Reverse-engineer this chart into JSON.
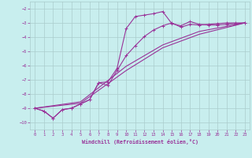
{
  "xlabel": "Windchill (Refroidissement éolien,°C)",
  "bg_color": "#c8eeee",
  "line_color": "#993399",
  "grid_color": "#aacccc",
  "line1_x": [
    0,
    1,
    2,
    3,
    4,
    5,
    6,
    7,
    8,
    9,
    10,
    11,
    12,
    13,
    14,
    15,
    16,
    17,
    18,
    19,
    20,
    21,
    22,
    23
  ],
  "line1_y": [
    -9.0,
    -9.2,
    -9.7,
    -9.1,
    -9.0,
    -8.7,
    -8.4,
    -7.2,
    -7.15,
    -6.2,
    -3.4,
    -2.55,
    -2.45,
    -2.35,
    -2.2,
    -3.05,
    -3.2,
    -2.9,
    -3.1,
    -3.15,
    -3.15,
    -3.1,
    -3.05,
    -3.0
  ],
  "line2_x": [
    0,
    1,
    2,
    3,
    4,
    5,
    6,
    7,
    8,
    9,
    10,
    11,
    12,
    13,
    14,
    15,
    16,
    17,
    18,
    19,
    20,
    21,
    22,
    23
  ],
  "line2_y": [
    -9.0,
    -9.2,
    -9.7,
    -9.1,
    -9.0,
    -8.7,
    -8.4,
    -7.2,
    -7.4,
    -6.35,
    -5.3,
    -4.6,
    -3.95,
    -3.5,
    -3.2,
    -3.0,
    -3.3,
    -3.1,
    -3.15,
    -3.1,
    -3.05,
    -3.0,
    -3.0,
    -3.0
  ],
  "line3_x": [
    0,
    5,
    10,
    14,
    18,
    23
  ],
  "line3_y": [
    -9.0,
    -8.65,
    -6.35,
    -4.75,
    -3.8,
    -3.0
  ],
  "line4_x": [
    0,
    5,
    10,
    14,
    18,
    23
  ],
  "line4_y": [
    -9.0,
    -8.55,
    -6.05,
    -4.55,
    -3.6,
    -3.0
  ],
  "ylim": [
    -10.5,
    -1.5
  ],
  "xlim": [
    -0.5,
    23.5
  ],
  "yticks": [
    -10,
    -9,
    -8,
    -7,
    -6,
    -5,
    -4,
    -3,
    -2
  ],
  "xticks": [
    0,
    1,
    2,
    3,
    4,
    5,
    6,
    7,
    8,
    9,
    10,
    11,
    12,
    13,
    14,
    15,
    16,
    17,
    18,
    19,
    20,
    21,
    22,
    23
  ]
}
